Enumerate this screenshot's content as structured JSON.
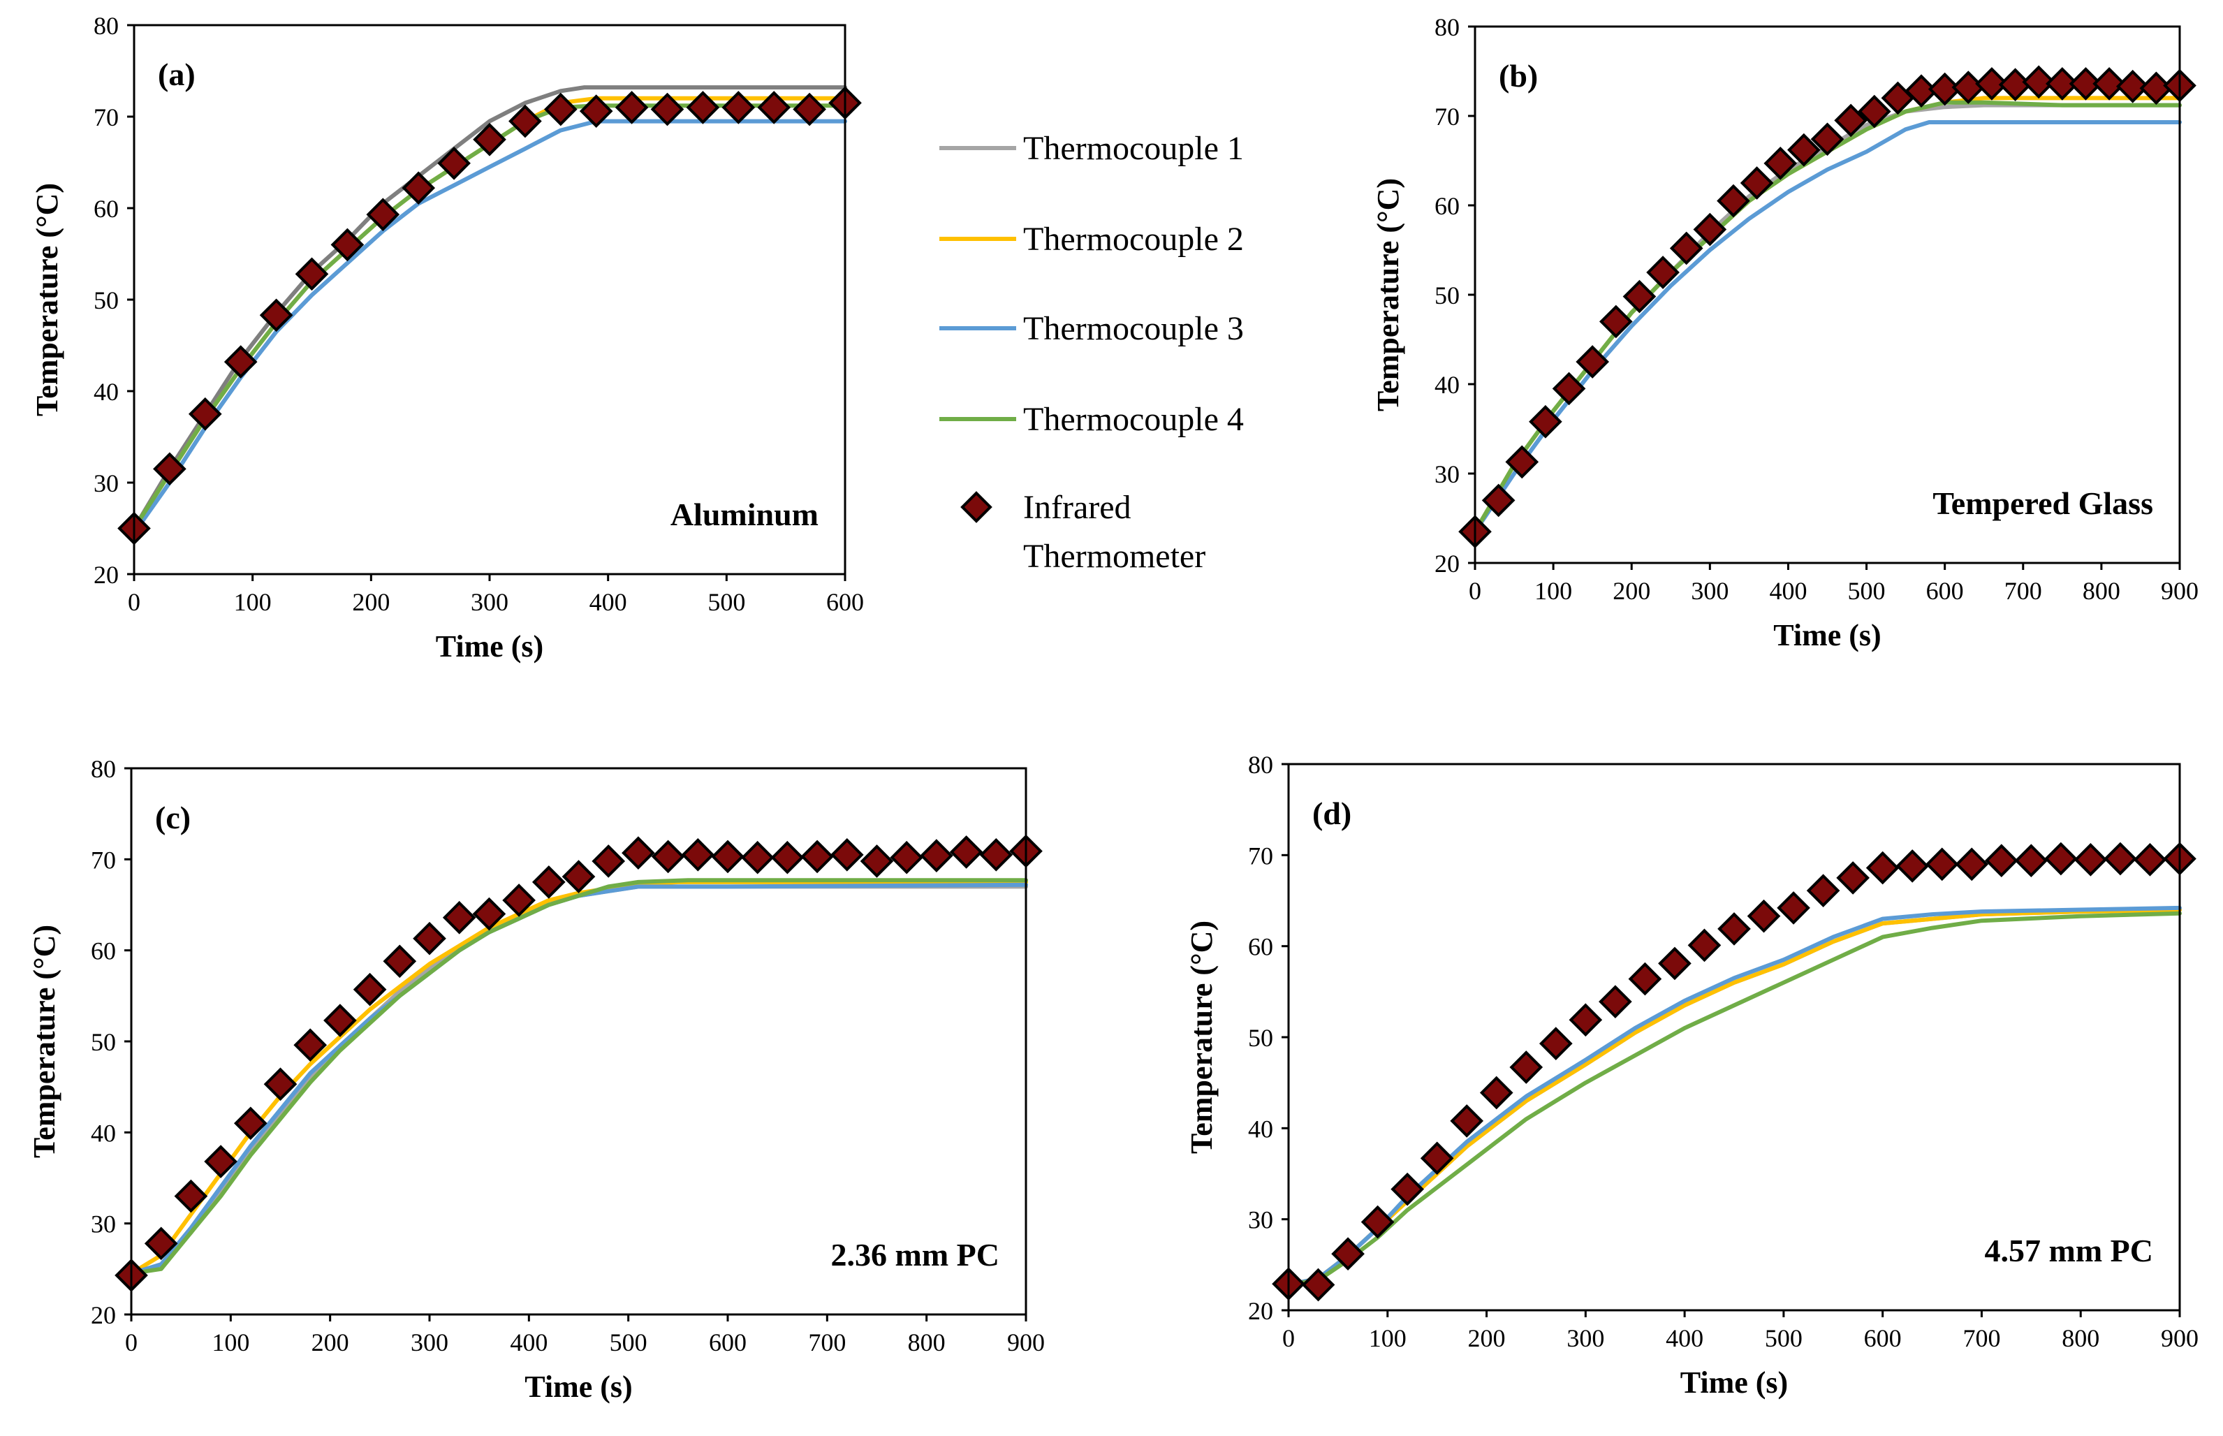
{
  "colors": {
    "thermocouple_1": "#A5A5A5",
    "thermocouple_2": "#FFC000",
    "thermocouple_3": "#5B9BD5",
    "thermocouple_4": "#70AD47",
    "infrared_fill": "#7B0A0A",
    "infrared_stroke": "#000000",
    "thermocouple_1_aluminum": "#7F7F7F"
  },
  "legend": {
    "items": [
      {
        "key": "thermocouple_1",
        "label": "Thermocouple 1",
        "marker": "line"
      },
      {
        "key": "thermocouple_2",
        "label": "Thermocouple 2",
        "marker": "line"
      },
      {
        "key": "thermocouple_3",
        "label": "Thermocouple 3",
        "marker": "line"
      },
      {
        "key": "thermocouple_4",
        "label": "Thermocouple 4",
        "marker": "line"
      },
      {
        "key": "infrared",
        "label_line1": "Infrared",
        "label_line2": "Thermometer",
        "marker": "diamond"
      }
    ]
  },
  "chart_data": [
    {
      "panel": "(a)",
      "material": "Aluminum",
      "type": "line",
      "xlabel": "Time (s)",
      "ylabel": "Temperature (°C)",
      "xlim": [
        0,
        600
      ],
      "ylim": [
        20,
        80
      ],
      "xticks": [
        0,
        100,
        200,
        300,
        400,
        500,
        600
      ],
      "yticks": [
        20,
        30,
        40,
        50,
        60,
        70,
        80
      ],
      "grid": false,
      "series": [
        {
          "name": "Thermocouple 1",
          "key": "thermocouple_1_aluminum",
          "x": [
            0,
            30,
            60,
            90,
            120,
            150,
            180,
            210,
            240,
            270,
            300,
            330,
            360,
            380,
            420,
            600
          ],
          "y": [
            25,
            31.5,
            37.5,
            43.5,
            48.5,
            53,
            56.5,
            60.5,
            63.5,
            66.5,
            69.5,
            71.5,
            72.8,
            73.2,
            73.2,
            73.2
          ]
        },
        {
          "name": "Thermocouple 2",
          "key": "thermocouple_2",
          "x": [
            0,
            30,
            60,
            90,
            120,
            150,
            180,
            210,
            240,
            270,
            300,
            330,
            360,
            390,
            600
          ],
          "y": [
            25,
            31,
            37,
            42.5,
            47.5,
            52,
            55.5,
            59,
            62,
            64.5,
            67,
            69.5,
            71.5,
            72,
            72
          ]
        },
        {
          "name": "Thermocouple 3",
          "key": "thermocouple_3",
          "x": [
            0,
            30,
            60,
            90,
            120,
            150,
            180,
            210,
            240,
            270,
            300,
            330,
            360,
            390,
            420,
            600
          ],
          "y": [
            24.5,
            30,
            36,
            41.5,
            46.5,
            50.5,
            54,
            57.5,
            60.5,
            62.5,
            64.5,
            66.5,
            68.5,
            69.5,
            69.5,
            69.5
          ]
        },
        {
          "name": "Thermocouple 4",
          "key": "thermocouple_4",
          "x": [
            0,
            30,
            60,
            90,
            120,
            150,
            180,
            210,
            240,
            270,
            300,
            330,
            360,
            390,
            600
          ],
          "y": [
            25,
            31,
            37,
            42.5,
            47.5,
            52,
            55.5,
            59,
            62,
            64.5,
            67,
            69.5,
            71,
            71.2,
            71.2
          ]
        },
        {
          "name": "Infrared Thermometer",
          "key": "infrared",
          "marker": "diamond",
          "x": [
            0,
            30,
            60,
            90,
            120,
            150,
            180,
            210,
            240,
            270,
            300,
            330,
            360,
            390,
            420,
            450,
            480,
            510,
            540,
            570,
            600
          ],
          "y": [
            25,
            31.5,
            37.5,
            43.2,
            48.3,
            52.8,
            56,
            59.3,
            62.2,
            64.9,
            67.5,
            69.5,
            70.8,
            70.6,
            71,
            70.8,
            71,
            71,
            71,
            70.8,
            71.5
          ]
        }
      ]
    },
    {
      "panel": "(b)",
      "material": "Tempered Glass",
      "type": "line",
      "xlabel": "Time (s)",
      "ylabel": "Temperature (°C)",
      "xlim": [
        0,
        900
      ],
      "ylim": [
        20,
        80
      ],
      "xticks": [
        0,
        100,
        200,
        300,
        400,
        500,
        600,
        700,
        800,
        900
      ],
      "yticks": [
        20,
        30,
        40,
        50,
        60,
        70,
        80
      ],
      "grid": false,
      "series": [
        {
          "name": "Thermocouple 1",
          "key": "thermocouple_1",
          "x": [
            0,
            50,
            100,
            150,
            200,
            250,
            300,
            350,
            400,
            450,
            500,
            550,
            600,
            650,
            900
          ],
          "y": [
            23.5,
            31,
            37,
            42.5,
            48,
            52.5,
            57,
            61,
            64,
            66.5,
            69,
            70.5,
            71,
            71.2,
            71.2
          ]
        },
        {
          "name": "Thermocouple 2",
          "key": "thermocouple_2",
          "x": [
            0,
            50,
            100,
            150,
            200,
            250,
            300,
            350,
            400,
            450,
            500,
            550,
            600,
            650,
            900
          ],
          "y": [
            23.5,
            31,
            37,
            42.5,
            48,
            52.5,
            56.5,
            60.5,
            63.5,
            66,
            68.5,
            70.5,
            71.5,
            72,
            72
          ]
        },
        {
          "name": "Thermocouple 3",
          "key": "thermocouple_3",
          "x": [
            0,
            50,
            100,
            150,
            200,
            250,
            300,
            350,
            400,
            450,
            500,
            550,
            580,
            900
          ],
          "y": [
            23.5,
            30,
            36,
            41.5,
            46.5,
            51,
            55,
            58.5,
            61.5,
            64,
            66,
            68.5,
            69.3,
            69.3
          ]
        },
        {
          "name": "Thermocouple 4",
          "key": "thermocouple_4",
          "x": [
            0,
            50,
            100,
            150,
            200,
            250,
            300,
            350,
            400,
            450,
            500,
            550,
            600,
            650,
            750,
            900
          ],
          "y": [
            23.5,
            31,
            37,
            42.5,
            48,
            52.5,
            56.5,
            60.5,
            63.5,
            66,
            68.5,
            70.5,
            71.5,
            71.5,
            71.2,
            71.2
          ]
        },
        {
          "name": "Infrared Thermometer",
          "key": "infrared",
          "marker": "diamond",
          "x": [
            0,
            30,
            60,
            90,
            120,
            150,
            180,
            210,
            240,
            270,
            300,
            330,
            360,
            390,
            420,
            450,
            480,
            510,
            540,
            570,
            600,
            630,
            660,
            690,
            720,
            750,
            780,
            810,
            840,
            870,
            900
          ],
          "y": [
            23.5,
            27,
            31.3,
            35.8,
            39.5,
            42.5,
            47,
            49.8,
            52.5,
            55.2,
            57.3,
            60.5,
            62.5,
            64.7,
            66.2,
            67.4,
            69.5,
            70.5,
            72,
            72.8,
            73,
            73.2,
            73.6,
            73.5,
            73.8,
            73.6,
            73.6,
            73.6,
            73.3,
            73.1,
            73.4
          ]
        }
      ]
    },
    {
      "panel": "(c)",
      "material": "2.36 mm PC",
      "type": "line",
      "xlabel": "Time (s)",
      "ylabel": "Temperature (°C)",
      "xlim": [
        0,
        900
      ],
      "ylim": [
        20,
        80
      ],
      "xticks": [
        0,
        100,
        200,
        300,
        400,
        500,
        600,
        700,
        800,
        900
      ],
      "yticks": [
        20,
        30,
        40,
        50,
        60,
        70,
        80
      ],
      "grid": false,
      "series": [
        {
          "name": "Thermocouple 1",
          "key": "thermocouple_1",
          "x": [
            0,
            30,
            60,
            90,
            120,
            150,
            180,
            210,
            240,
            270,
            300,
            330,
            360,
            390,
            420,
            450,
            480,
            510,
            550,
            900
          ],
          "y": [
            24.5,
            25.5,
            29,
            33.5,
            38,
            42,
            46,
            49.5,
            52.5,
            55.5,
            58,
            60,
            62,
            63.5,
            65,
            66,
            66.5,
            67,
            67,
            67
          ]
        },
        {
          "name": "Thermocouple 2",
          "key": "thermocouple_2",
          "x": [
            0,
            30,
            60,
            90,
            120,
            150,
            180,
            210,
            240,
            270,
            300,
            330,
            360,
            390,
            420,
            450,
            480,
            510,
            550,
            900
          ],
          "y": [
            24.5,
            26.5,
            31,
            35.5,
            40,
            44,
            47.5,
            50.5,
            53.5,
            56,
            58.5,
            60.5,
            62.5,
            64,
            65.5,
            66.3,
            66.8,
            67.2,
            67.5,
            67.5
          ]
        },
        {
          "name": "Thermocouple 3",
          "key": "thermocouple_3",
          "x": [
            0,
            30,
            60,
            90,
            120,
            150,
            180,
            210,
            240,
            270,
            300,
            330,
            360,
            390,
            420,
            450,
            480,
            510,
            550,
            600,
            900
          ],
          "y": [
            24.5,
            25.5,
            29.5,
            34,
            38.5,
            42.5,
            46.5,
            49.5,
            52.5,
            55,
            57.5,
            60,
            62,
            63.5,
            65,
            66,
            66.5,
            67,
            67,
            67,
            67.2
          ]
        },
        {
          "name": "Thermocouple 4",
          "key": "thermocouple_4",
          "x": [
            0,
            30,
            60,
            90,
            120,
            150,
            180,
            210,
            240,
            270,
            300,
            330,
            360,
            390,
            420,
            450,
            480,
            510,
            560,
            900
          ],
          "y": [
            24.5,
            25,
            29,
            33,
            37.5,
            41.5,
            45.5,
            49,
            52,
            55,
            57.5,
            60,
            62,
            63.5,
            65,
            66,
            67,
            67.5,
            67.7,
            67.7
          ]
        },
        {
          "name": "Infrared Thermometer",
          "key": "infrared",
          "marker": "diamond",
          "x": [
            0,
            30,
            60,
            90,
            120,
            150,
            180,
            210,
            240,
            270,
            300,
            330,
            360,
            390,
            420,
            450,
            480,
            510,
            540,
            570,
            600,
            630,
            660,
            690,
            720,
            750,
            780,
            810,
            840,
            870,
            900
          ],
          "y": [
            24.3,
            27.8,
            33,
            36.8,
            41,
            45.3,
            49.6,
            52.3,
            55.7,
            58.8,
            61.3,
            63.6,
            64,
            65.5,
            67.5,
            68.1,
            69.8,
            70.7,
            70.3,
            70.5,
            70.3,
            70.2,
            70.2,
            70.3,
            70.5,
            69.8,
            70.2,
            70.4,
            70.8,
            70.5,
            70.9
          ]
        }
      ]
    },
    {
      "panel": "(d)",
      "material": "4.57 mm PC",
      "type": "line",
      "xlabel": "Time (s)",
      "ylabel": "Temperature (°C)",
      "xlim": [
        0,
        900
      ],
      "ylim": [
        20,
        80
      ],
      "xticks": [
        0,
        100,
        200,
        300,
        400,
        500,
        600,
        700,
        800,
        900
      ],
      "yticks": [
        20,
        30,
        40,
        50,
        60,
        70,
        80
      ],
      "grid": false,
      "series": [
        {
          "name": "Thermocouple 1",
          "key": "thermocouple_1",
          "x": [
            0,
            30,
            60,
            90,
            120,
            150,
            180,
            210,
            240,
            270,
            300,
            350,
            400,
            450,
            500,
            550,
            600,
            650,
            700,
            800,
            900
          ],
          "y": [
            22.8,
            23.5,
            26,
            29,
            32,
            35,
            38,
            40.5,
            43,
            45,
            47,
            50.5,
            53.5,
            56,
            58,
            60.5,
            62.5,
            63,
            63.5,
            63.8,
            64
          ]
        },
        {
          "name": "Thermocouple 2",
          "key": "thermocouple_2",
          "x": [
            0,
            30,
            60,
            90,
            120,
            150,
            180,
            210,
            240,
            270,
            300,
            350,
            400,
            450,
            500,
            550,
            600,
            650,
            700,
            800,
            900
          ],
          "y": [
            22.8,
            23.5,
            26,
            29,
            32,
            35,
            38,
            40.5,
            43,
            45,
            47,
            50.5,
            53.5,
            56,
            58,
            60.5,
            62.5,
            63,
            63.5,
            63.8,
            64
          ]
        },
        {
          "name": "Thermocouple 3",
          "key": "thermocouple_3",
          "x": [
            0,
            30,
            60,
            90,
            120,
            150,
            180,
            210,
            240,
            270,
            300,
            350,
            400,
            450,
            500,
            550,
            600,
            650,
            700,
            800,
            900
          ],
          "y": [
            22.8,
            23.5,
            26,
            29,
            32.5,
            35.5,
            38.5,
            41,
            43.5,
            45.5,
            47.5,
            51,
            54,
            56.5,
            58.5,
            61,
            63,
            63.5,
            63.8,
            64,
            64.2
          ]
        },
        {
          "name": "Thermocouple 4",
          "key": "thermocouple_4",
          "x": [
            0,
            30,
            60,
            90,
            120,
            150,
            180,
            210,
            240,
            270,
            300,
            350,
            400,
            450,
            500,
            550,
            600,
            650,
            700,
            800,
            900
          ],
          "y": [
            22.8,
            23.3,
            25.5,
            28,
            31,
            33.5,
            36,
            38.5,
            41,
            43,
            45,
            48,
            51,
            53.5,
            56,
            58.5,
            61,
            62,
            62.8,
            63.3,
            63.6
          ]
        },
        {
          "name": "Infrared Thermometer",
          "key": "infrared",
          "marker": "diamond",
          "x": [
            0,
            30,
            60,
            90,
            120,
            150,
            180,
            210,
            240,
            270,
            300,
            330,
            360,
            390,
            420,
            450,
            480,
            510,
            540,
            570,
            600,
            630,
            660,
            690,
            720,
            750,
            780,
            810,
            840,
            870,
            900
          ],
          "y": [
            22.9,
            22.8,
            26.2,
            29.7,
            33.3,
            36.7,
            40.8,
            43.9,
            46.7,
            49.3,
            51.9,
            53.9,
            56.4,
            58.1,
            60.1,
            61.9,
            63.3,
            64.2,
            66.1,
            67.5,
            68.6,
            68.8,
            69,
            69,
            69.4,
            69.4,
            69.6,
            69.5,
            69.6,
            69.5,
            69.6
          ]
        }
      ]
    }
  ]
}
